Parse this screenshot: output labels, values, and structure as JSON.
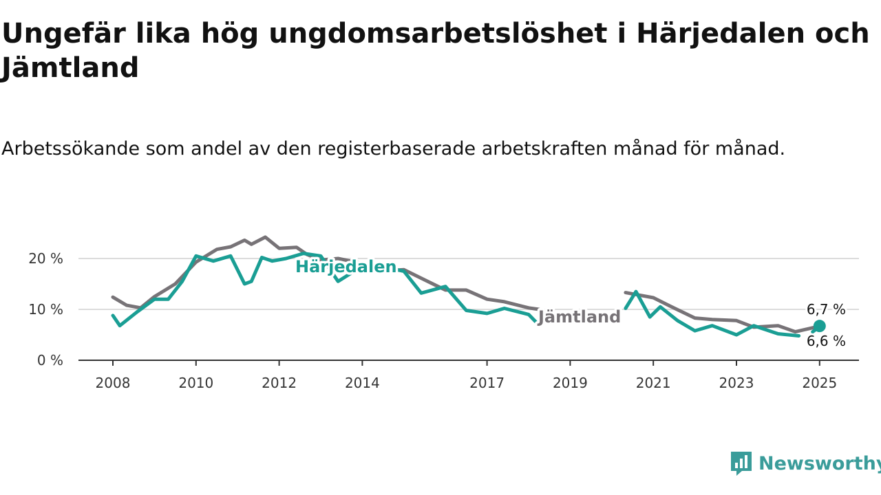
{
  "title": "Ungefär lika hög ungdomsarbetslöshet i Härjedalen och Jämtland",
  "subtitle": "Arbetssökande som andel av den registerbaserade arbetskraften månad för månad.",
  "brand": {
    "name": "Newsworthy",
    "icon": "newsworthy-logo-icon"
  },
  "chart_data": {
    "type": "line",
    "title": "Ungefär lika hög ungdomsarbetslöshet i Härjedalen och Jämtland",
    "subtitle": "Arbetssökande som andel av den registerbaserade arbetskraften månad för månad.",
    "xlabel": "",
    "ylabel": "",
    "ylim": [
      0,
      23
    ],
    "yticks": [
      0,
      10,
      20
    ],
    "ytick_labels": [
      "0 %",
      "10 %",
      "20 %"
    ],
    "xticks": [
      2008,
      2010,
      2012,
      2014,
      2017,
      2019,
      2021,
      2023,
      2025
    ],
    "xtick_labels": [
      "2008",
      "2010",
      "2012",
      "2014",
      "2017",
      "2019",
      "2021",
      "2023",
      "2025"
    ],
    "grid": "horizontal",
    "legend": "inline labels",
    "end_labels": {
      "Jämtland": "6,7 %",
      "Härjedalen": "6,6 %"
    },
    "series": [
      {
        "name": "Jämtland",
        "color": "#777377",
        "x": [
          "2008-01",
          "2008-05",
          "2008-09",
          "2009-01",
          "2009-07",
          "2010-01",
          "2010-07",
          "2010-11",
          "2011-03",
          "2011-05",
          "2011-09",
          "2012-01",
          "2012-06",
          "2012-09",
          "2013-01",
          "2013-06",
          "2014-01",
          "2014-06",
          "2015-01",
          "2015-07",
          "2016-01",
          "2016-07",
          "2017-01",
          "2017-06",
          "2018-01",
          "2018-04"
        ],
        "values": [
          12.4,
          10.8,
          10.3,
          12.5,
          15.0,
          19.3,
          21.8,
          22.3,
          23.6,
          22.8,
          24.2,
          22.0,
          22.2,
          20.8,
          19.7,
          20.0,
          19.0,
          17.5,
          17.8,
          15.8,
          13.8,
          13.8,
          12.0,
          11.5,
          10.3,
          10.0
        ],
        "segments": [
          {
            "x": [
              "2020-05",
              "2020-09",
              "2021-01",
              "2021-06",
              "2022-01",
              "2022-06",
              "2023-01",
              "2023-06",
              "2024-01",
              "2024-06",
              "2025-01"
            ],
            "values": [
              13.3,
              12.8,
              12.3,
              10.6,
              8.3,
              8.0,
              7.8,
              6.5,
              6.8,
              5.6,
              6.7
            ]
          }
        ]
      },
      {
        "name": "Härjedalen",
        "color": "#1a9e94",
        "x": [
          "2008-01",
          "2008-03",
          "2008-08",
          "2009-01",
          "2009-05",
          "2009-09",
          "2010-01",
          "2010-06",
          "2010-11",
          "2011-03",
          "2011-05",
          "2011-08",
          "2011-11",
          "2012-03",
          "2012-08",
          "2013-01",
          "2013-06",
          "2014-01",
          "2014-06",
          "2015-01",
          "2015-06",
          "2016-01",
          "2016-07",
          "2017-01",
          "2017-06",
          "2018-01",
          "2018-03"
        ],
        "values": [
          8.8,
          6.8,
          9.5,
          12.0,
          12.0,
          15.5,
          20.5,
          19.5,
          20.5,
          15.0,
          15.5,
          20.2,
          19.5,
          20.0,
          21.0,
          20.5,
          15.5,
          18.5,
          18.5,
          17.5,
          13.2,
          14.5,
          9.8,
          9.2,
          10.2,
          9.0,
          7.6
        ],
        "segments": [
          {
            "x": [
              "2020-05",
              "2020-08",
              "2020-12",
              "2021-03",
              "2021-08",
              "2022-01",
              "2022-06",
              "2023-01",
              "2023-06",
              "2024-01",
              "2024-07"
            ],
            "values": [
              10.2,
              13.5,
              8.5,
              10.5,
              7.8,
              5.8,
              6.8,
              5.0,
              6.8,
              5.2,
              4.8
            ]
          },
          {
            "x": [
              "2024-11",
              "2025-01"
            ],
            "values": [
              5.6,
              6.6
            ]
          }
        ]
      }
    ]
  }
}
